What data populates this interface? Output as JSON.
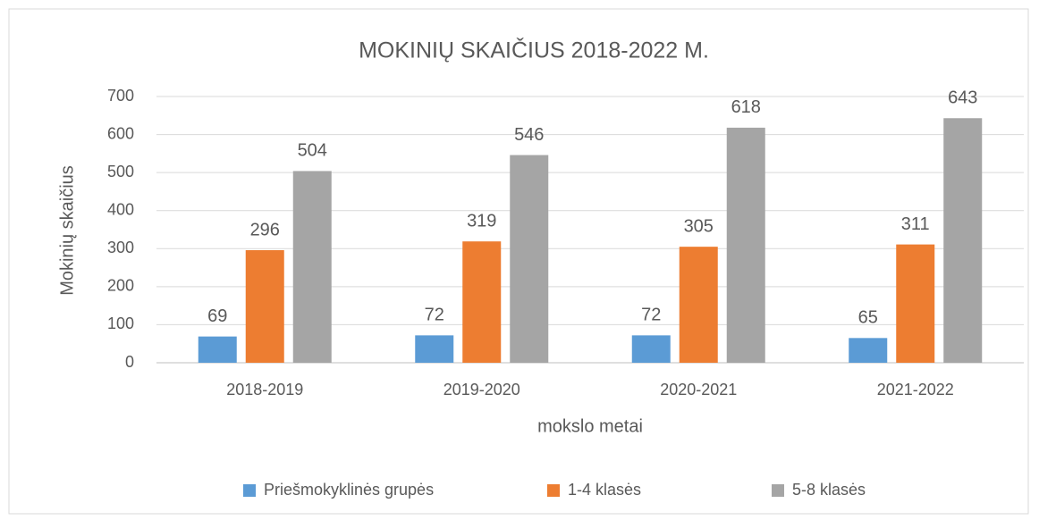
{
  "chart_data": {
    "type": "bar",
    "title": "MOKINIŲ SKAIČIUS 2018-2022 M.",
    "xlabel": "mokslo metai",
    "ylabel": "Mokinių skaičius",
    "categories": [
      "2018-2019",
      "2019-2020",
      "2020-2021",
      "2021-2022"
    ],
    "series": [
      {
        "name": "Priešmokyklinės grupės",
        "color": "#5b9bd5",
        "values": [
          69,
          72,
          72,
          65
        ]
      },
      {
        "name": "1-4 klasės",
        "color": "#ed7d31",
        "values": [
          296,
          319,
          305,
          311
        ]
      },
      {
        "name": "5-8 klasės",
        "color": "#a5a5a5",
        "values": [
          504,
          546,
          618,
          643
        ]
      }
    ],
    "ylim": [
      0,
      700
    ],
    "yticks": [
      0,
      100,
      200,
      300,
      400,
      500,
      600,
      700
    ],
    "grid": true,
    "legend": "bottom"
  }
}
